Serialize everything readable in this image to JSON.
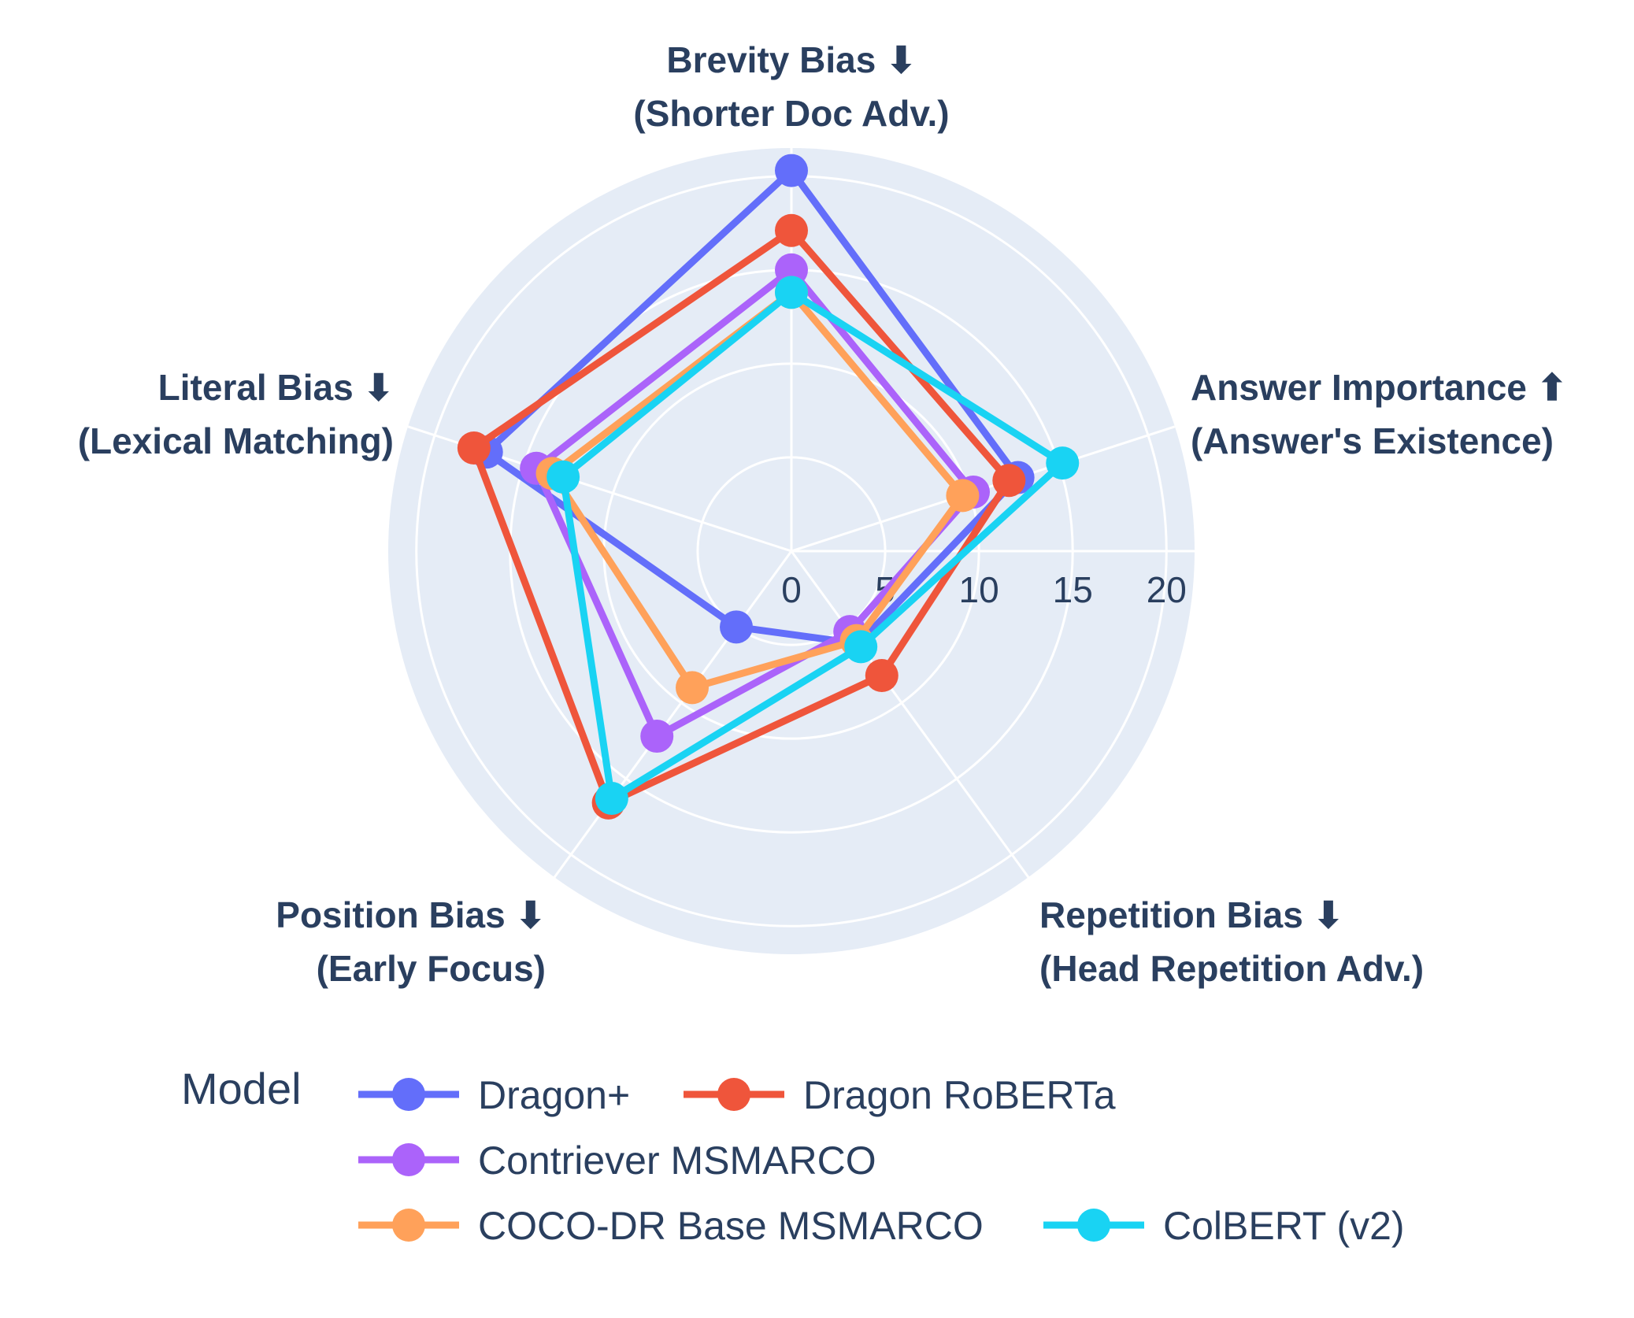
{
  "chart_data": {
    "type": "radar",
    "axes": [
      {
        "line1": "Brevity Bias ⬇",
        "line2": "(Shorter Doc Adv.)"
      },
      {
        "line1": "Answer Importance ⬆",
        "line2": "(Answer's Existence)"
      },
      {
        "line1": "Repetition Bias ⬇",
        "line2": "(Head Repetition Adv.)"
      },
      {
        "line1": "Position Bias ⬇",
        "line2": "(Early Focus)"
      },
      {
        "line1": "Literal Bias ⬇",
        "line2": "(Lexical Matching)"
      }
    ],
    "radial_range": [
      0,
      21.5
    ],
    "radial_ticks": [
      0,
      5,
      10,
      15,
      20
    ],
    "radial_tick_labels": [
      "0",
      "5",
      "10",
      "15",
      "20"
    ],
    "legend_title": "Model",
    "series": [
      {
        "name": "Dragon+",
        "color": "#636efa",
        "values": [
          20.3,
          12.7,
          6.1,
          5.0,
          17.1
        ]
      },
      {
        "name": "Dragon RoBERTa",
        "color": "#ef553b",
        "values": [
          17.1,
          12.2,
          8.2,
          16.6,
          17.8
        ]
      },
      {
        "name": "Contriever MSMARCO",
        "color": "#ab63fa",
        "values": [
          15.0,
          10.2,
          5.3,
          12.2,
          14.3
        ]
      },
      {
        "name": "COCO-DR Base MSMARCO",
        "color": "#ffa15a",
        "values": [
          13.8,
          9.6,
          5.9,
          9.0,
          13.4
        ]
      },
      {
        "name": "ColBERT (v2)",
        "color": "#19d3f3",
        "values": [
          13.8,
          15.2,
          6.3,
          16.3,
          12.8
        ]
      }
    ]
  }
}
